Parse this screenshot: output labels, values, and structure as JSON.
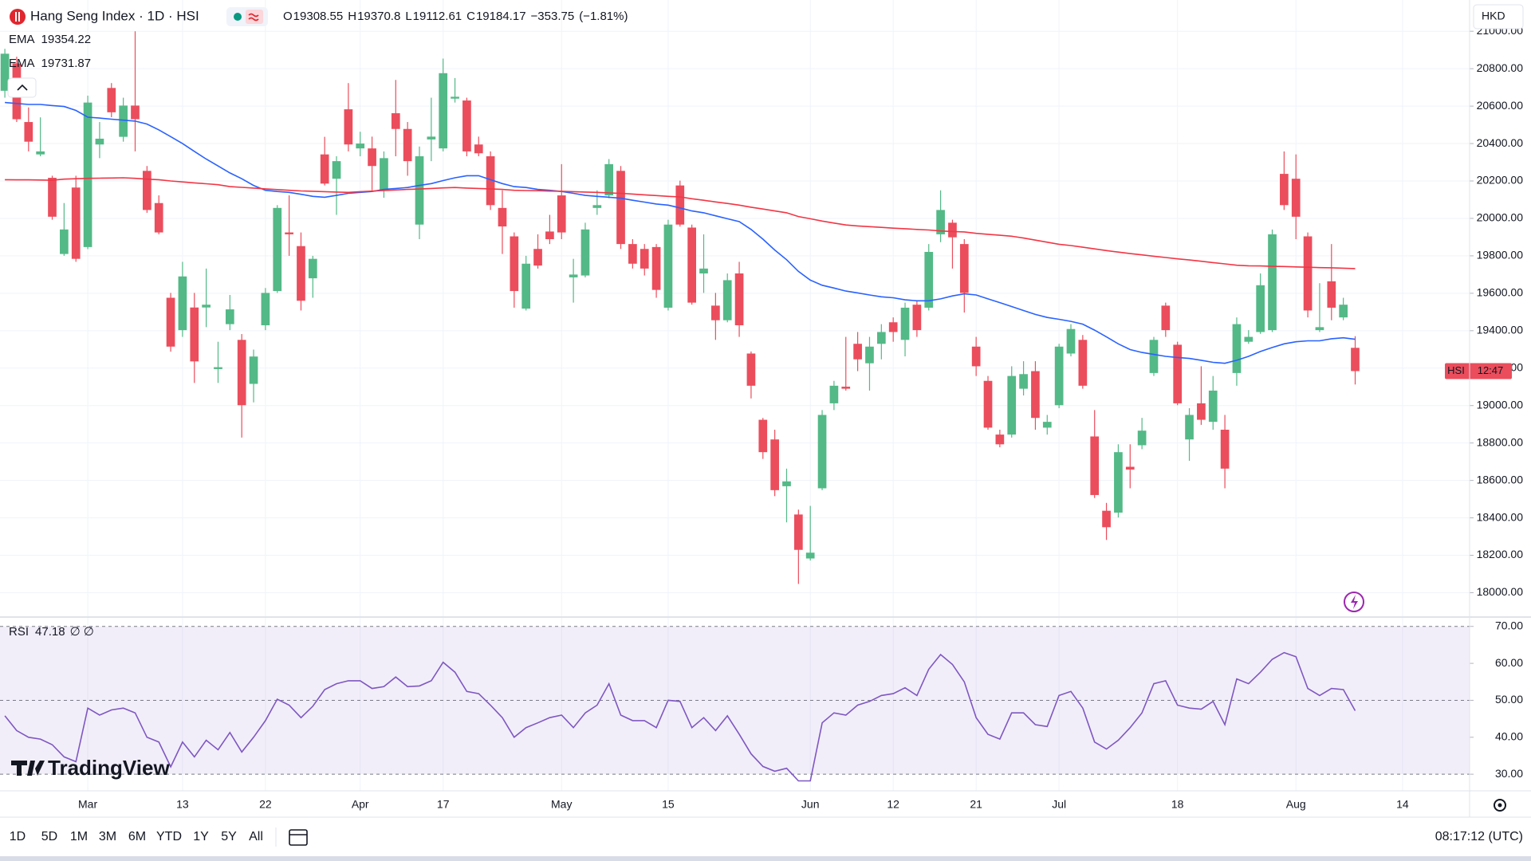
{
  "ui": {
    "header": {
      "ohlc_labels": [
        "O",
        "H",
        "L",
        "C"
      ],
      "change": "−353.75",
      "change_pct": "(−1.81%)"
    },
    "currency": "HKD",
    "price_tag": {
      "symbol": "HSI",
      "countdown": "12:47"
    },
    "rsi_extra": "∅ ∅",
    "brand": "TradingView",
    "ranges": [
      "1D",
      "5D",
      "1M",
      "3M",
      "6M",
      "YTD",
      "1Y",
      "5Y",
      "All"
    ],
    "clock": "08:17:12 (UTC)"
  },
  "chart_data": [
    {
      "type": "candlestick",
      "title": "Hang Seng Index · 1D · HSI",
      "up_color": "#53b987",
      "down_color": "#eb4d5c",
      "ohlc": {
        "open": [
          20682,
          20828,
          20515,
          20342,
          20217,
          19810,
          20165,
          19847,
          20395,
          20697,
          20436,
          20603,
          20254,
          20082,
          19576,
          19403,
          19524,
          19524,
          19195,
          19435,
          19351,
          19116,
          19429,
          19612,
          19925,
          19852,
          19680,
          20342,
          20212,
          20583,
          20374,
          20374,
          20150,
          20562,
          20478,
          19967,
          20422,
          20374,
          20640,
          20630,
          20395,
          20332,
          20056,
          19904,
          19518,
          19837,
          19930,
          20123,
          19685,
          19695,
          20056,
          20123,
          20254,
          19863,
          19837,
          19847,
          19523,
          20176,
          19951,
          19706,
          19534,
          19456,
          19706,
          19278,
          18924,
          18819,
          18569,
          18418,
          18183,
          18558,
          19012,
          19101,
          19330,
          19226,
          19330,
          19445,
          19351,
          19539,
          19523,
          19915,
          19977,
          19863,
          19315,
          19132,
          18845,
          18845,
          19090,
          19184,
          18882,
          19002,
          19278,
          19351,
          18835,
          18438,
          18428,
          18673,
          18788,
          19174,
          19534,
          19325,
          18819,
          19012,
          18913,
          18871,
          19174,
          19341,
          19393,
          19403,
          20238,
          20212,
          19904,
          19403,
          19664,
          19471,
          19308.55
        ],
        "high": [
          20906,
          20864,
          20593,
          20540,
          20228,
          20082,
          20228,
          20656,
          20515,
          20723,
          20645,
          21000,
          20280,
          20123,
          19602,
          19768,
          19602,
          19732,
          19341,
          19591,
          19382,
          19299,
          19628,
          20071,
          20123,
          19925,
          19800,
          20436,
          20332,
          20723,
          20463,
          20437,
          20358,
          20740,
          20515,
          20384,
          20645,
          20854,
          20750,
          20645,
          20437,
          20358,
          20150,
          19925,
          19800,
          19915,
          20019,
          20290,
          19784,
          19977,
          20150,
          20317,
          20280,
          19889,
          19863,
          19863,
          19993,
          20202,
          19967,
          19915,
          19602,
          19706,
          19768,
          19289,
          18934,
          18871,
          18663,
          18444,
          18464,
          18976,
          19132,
          19367,
          19393,
          19367,
          19435,
          19471,
          19550,
          19560,
          19863,
          20150,
          19993,
          19889,
          19367,
          19158,
          18871,
          19210,
          19237,
          19237,
          18950,
          19330,
          19435,
          19377,
          18976,
          18480,
          18793,
          18793,
          18934,
          19367,
          19550,
          19341,
          18986,
          19210,
          19158,
          18950,
          19471,
          19403,
          19706,
          19941,
          20358,
          20342,
          19925,
          19654,
          19863,
          19576,
          19370.8
        ],
        "low": [
          20645,
          20515,
          20358,
          20332,
          19993,
          19800,
          19768,
          19836,
          20322,
          20541,
          20410,
          20358,
          20030,
          19915,
          19288,
          19367,
          19121,
          19419,
          19121,
          19403,
          18829,
          19017,
          19403,
          19602,
          19800,
          19508,
          19576,
          20176,
          20019,
          20358,
          20332,
          20150,
          20110,
          20332,
          20228,
          19889,
          20306,
          20358,
          20619,
          20332,
          20332,
          20045,
          19810,
          19523,
          19508,
          19732,
          19863,
          19889,
          19550,
          19685,
          20019,
          20108,
          19837,
          19732,
          19695,
          19576,
          19508,
          19956,
          19539,
          19602,
          19351,
          19445,
          19367,
          19038,
          18715,
          18516,
          18376,
          18047,
          18172,
          18548,
          18976,
          19080,
          19184,
          19080,
          19247,
          19341,
          19263,
          19367,
          19508,
          19873,
          19732,
          19497,
          19158,
          18871,
          18777,
          18829,
          19054,
          18871,
          18845,
          18986,
          19263,
          19090,
          18506,
          18282,
          18402,
          18558,
          18767,
          19158,
          19367,
          19002,
          18705,
          18897,
          18871,
          18558,
          19106,
          19330,
          19383,
          19393,
          20045,
          19889,
          19471,
          19393,
          19456,
          19456,
          19112.61
        ],
        "close": [
          20880,
          20530,
          20410,
          20358,
          20009,
          19941,
          19784,
          20619,
          20426,
          20567,
          20603,
          20530,
          20045,
          19925,
          19315,
          19690,
          19236,
          19539,
          19205,
          19514,
          19002,
          19262,
          19602,
          20056,
          19915,
          19560,
          19784,
          20186,
          20306,
          20395,
          20400,
          20280,
          20322,
          20478,
          20306,
          20332,
          20437,
          20776,
          20650,
          20358,
          20348,
          20071,
          19957,
          19612,
          19758,
          19748,
          19889,
          19925,
          19700,
          19941,
          20071,
          20290,
          19863,
          19758,
          19732,
          19618,
          19967,
          19967,
          19550,
          19732,
          19456,
          19670,
          19429,
          19106,
          18751,
          18548,
          18595,
          18229,
          18214,
          18950,
          19106,
          19090,
          19247,
          19315,
          19393,
          19393,
          19523,
          19403,
          19821,
          20045,
          19899,
          19602,
          19210,
          18882,
          18793,
          19158,
          19168,
          18934,
          18913,
          19315,
          19409,
          19106,
          18522,
          18350,
          18751,
          18658,
          18866,
          19351,
          19403,
          19012,
          18950,
          18924,
          19080,
          18663,
          19435,
          19367,
          19643,
          19915,
          20071,
          20009,
          19508,
          19419,
          19523,
          19539,
          19184.17
        ]
      },
      "series": [
        {
          "name": "EMA",
          "color": "#2962ff",
          "values": [
            20619,
            20614,
            20609,
            20609,
            20603,
            20598,
            20577,
            20541,
            20536,
            20530,
            20525,
            20520,
            20504,
            20473,
            20437,
            20400,
            20358,
            20317,
            20280,
            20243,
            20212,
            20176,
            20150,
            20144,
            20139,
            20129,
            20118,
            20113,
            20123,
            20134,
            20139,
            20144,
            20155,
            20160,
            20165,
            20176,
            20186,
            20202,
            20217,
            20228,
            20228,
            20207,
            20186,
            20170,
            20165,
            20155,
            20150,
            20144,
            20134,
            20123,
            20118,
            20113,
            20108,
            20097,
            20087,
            20077,
            20071,
            20056,
            20040,
            20030,
            20014,
            19998,
            19983,
            19941,
            19889,
            19831,
            19779,
            19717,
            19670,
            19643,
            19628,
            19612,
            19602,
            19591,
            19581,
            19576,
            19565,
            19560,
            19560,
            19570,
            19586,
            19597,
            19591,
            19570,
            19550,
            19529,
            19508,
            19487,
            19471,
            19461,
            19450,
            19435,
            19403,
            19367,
            19330,
            19299,
            19284,
            19273,
            19263,
            19257,
            19252,
            19242,
            19231,
            19226,
            19242,
            19263,
            19289,
            19310,
            19330,
            19341,
            19346,
            19346,
            19357,
            19362,
            19354.22
          ]
        },
        {
          "name": "EMA",
          "color": "#f23645",
          "values": [
            20207,
            20206,
            20206,
            20205,
            20204,
            20210,
            20212,
            20214,
            20215,
            20216,
            20217,
            20214,
            20210,
            20207,
            20200,
            20195,
            20190,
            20185,
            20180,
            20170,
            20166,
            20162,
            20158,
            20154,
            20150,
            20147,
            20145,
            20143,
            20141,
            20139,
            20143,
            20146,
            20149,
            20152,
            20155,
            20157,
            20160,
            20163,
            20165,
            20162,
            20160,
            20158,
            20155,
            20150,
            20149,
            20148,
            20146,
            20145,
            20143,
            20141,
            20139,
            20136,
            20134,
            20130,
            20126,
            20122,
            20118,
            20115,
            20105,
            20097,
            20088,
            20080,
            20071,
            20060,
            20050,
            20040,
            20030,
            20010,
            19998,
            19986,
            19975,
            19965,
            19960,
            19956,
            19952,
            19948,
            19945,
            19941,
            19938,
            19933,
            19930,
            19928,
            19920,
            19915,
            19910,
            19905,
            19895,
            19884,
            19873,
            19862,
            19855,
            19846,
            19837,
            19828,
            19820,
            19812,
            19805,
            19798,
            19791,
            19784,
            19778,
            19771,
            19764,
            19757,
            19750,
            19747,
            19746,
            19744,
            19743,
            19741,
            19739,
            19737,
            19736,
            19734,
            19731.87
          ]
        }
      ],
      "xlim": [
        -0.41,
        123.66
      ],
      "ylim": [
        17870,
        21167
      ],
      "yticks": [
        {
          "value": 18000,
          "label": "18000.00"
        },
        {
          "value": 18200,
          "label": "18200.00"
        },
        {
          "value": 18400,
          "label": "18400.00"
        },
        {
          "value": 18600,
          "label": "18600.00"
        },
        {
          "value": 18800,
          "label": "18800.00"
        },
        {
          "value": 19000,
          "label": "19000.00"
        },
        {
          "value": 19200,
          "label": "19200.00"
        },
        {
          "value": 19400,
          "label": "19400.00"
        },
        {
          "value": 19600,
          "label": "19600.00"
        },
        {
          "value": 19800,
          "label": "19800.00"
        },
        {
          "value": 20000,
          "label": "20000.00"
        },
        {
          "value": 20200,
          "label": "20200.00"
        },
        {
          "value": 20400,
          "label": "20400.00"
        },
        {
          "value": 20600,
          "label": "20600.00"
        },
        {
          "value": 20800,
          "label": "20800.00"
        },
        {
          "value": 21000,
          "label": "21000.00"
        }
      ],
      "grid": true
    },
    {
      "type": "line",
      "series": [
        {
          "name": "RSI",
          "color": "#7e57c2",
          "values": [
            45.8,
            41.8,
            40,
            39.5,
            38,
            34.7,
            33.4,
            47.9,
            46,
            47.4,
            47.9,
            46.6,
            40,
            38.7,
            32,
            38.7,
            34.7,
            39.2,
            36.6,
            41.3,
            36,
            40,
            44.5,
            50.3,
            48.7,
            45.3,
            48.4,
            52.9,
            54.5,
            55.3,
            55.3,
            53.2,
            53.7,
            56.3,
            53.7,
            53.9,
            55.3,
            60.3,
            57.6,
            52.4,
            51.8,
            48.7,
            45.3,
            40,
            42.6,
            43.9,
            45.3,
            46,
            42.6,
            46.6,
            48.7,
            54.5,
            46,
            44.5,
            44.5,
            42.6,
            50,
            49.7,
            42.6,
            45.3,
            41.8,
            45.8,
            40.8,
            35.5,
            32.1,
            30.8,
            31.6,
            28.2,
            28.2,
            43.9,
            46.6,
            46,
            48.7,
            49.7,
            51.3,
            51.8,
            53.4,
            51.3,
            58.4,
            62.4,
            59.7,
            55,
            45.3,
            40.8,
            39.5,
            46.6,
            46.6,
            43.4,
            42.9,
            51.3,
            52.4,
            47.9,
            38.7,
            36.8,
            39.2,
            42.6,
            46.6,
            54.5,
            55.3,
            48.7,
            47.9,
            47.6,
            49.7,
            43.4,
            55.8,
            54.5,
            57.6,
            61.1,
            62.9,
            61.8,
            53.2,
            51.3,
            53.2,
            52.9,
            47.18
          ]
        }
      ],
      "levels": [
        70,
        50,
        30
      ],
      "band_color": "#7e57c2",
      "xlim": [
        -0.41,
        123.66
      ],
      "ylim": [
        25.5,
        72.1
      ],
      "yticks": [
        {
          "value": 30,
          "label": "30.00"
        },
        {
          "value": 40,
          "label": "40.00"
        },
        {
          "value": 50,
          "label": "50.00"
        },
        {
          "value": 60,
          "label": "60.00"
        },
        {
          "value": 70,
          "label": "70.00"
        }
      ],
      "xticks": [
        {
          "value": 7,
          "label": "Mar"
        },
        {
          "value": 15,
          "label": "13"
        },
        {
          "value": 22,
          "label": "22"
        },
        {
          "value": 30,
          "label": "Apr"
        },
        {
          "value": 37,
          "label": "17"
        },
        {
          "value": 47,
          "label": "May"
        },
        {
          "value": 56,
          "label": "15"
        },
        {
          "value": 68,
          "label": "Jun"
        },
        {
          "value": 75,
          "label": "12"
        },
        {
          "value": 82,
          "label": "21"
        },
        {
          "value": 89,
          "label": "Jul"
        },
        {
          "value": 99,
          "label": "18"
        },
        {
          "value": 109,
          "label": "Aug"
        },
        {
          "value": 118,
          "label": "14"
        }
      ]
    }
  ]
}
